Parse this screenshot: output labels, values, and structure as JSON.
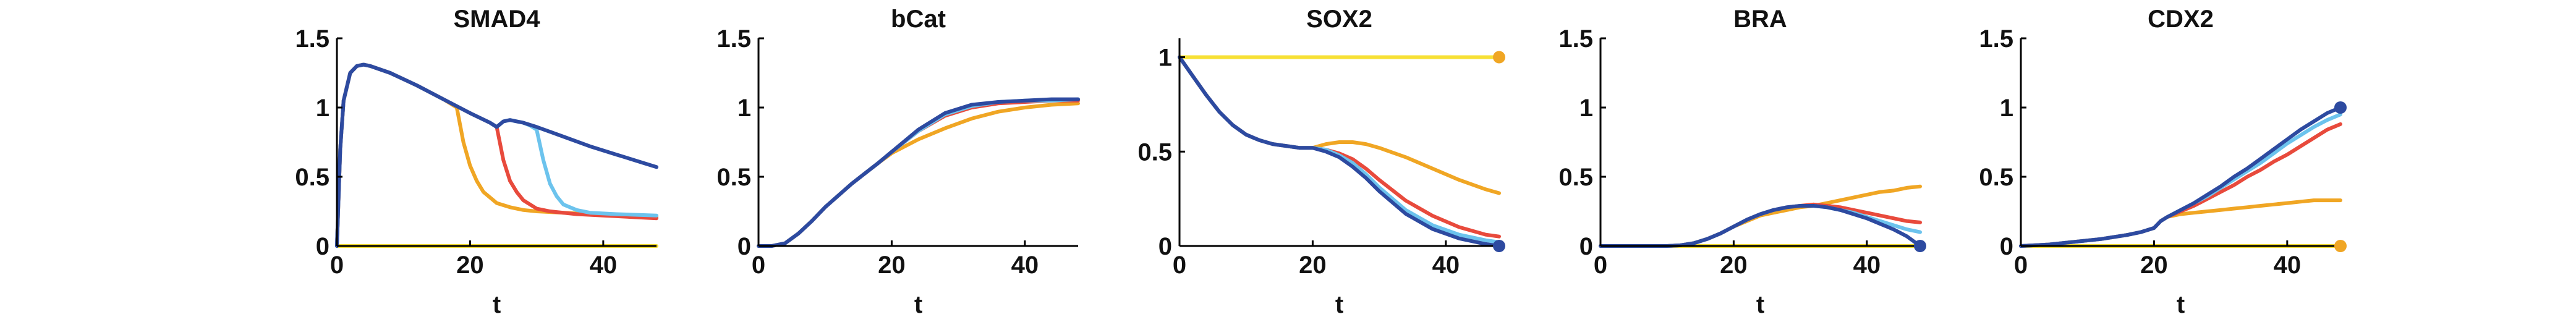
{
  "chart_data": [
    {
      "type": "line",
      "title": "SMAD4",
      "xlabel": "t",
      "ylabel": "",
      "xlim": [
        0,
        48
      ],
      "ylim": [
        0,
        1.5
      ],
      "xticks": [
        0,
        20,
        40
      ],
      "yticks": [
        0,
        0.5,
        1,
        1.5
      ],
      "xtick_labels": [
        "0",
        "20",
        "40"
      ],
      "ytick_labels": [
        "0",
        "0.5",
        "1",
        "1.5"
      ],
      "series": [
        {
          "color": "#f7e034",
          "x": [
            0,
            48
          ],
          "y": [
            0,
            0
          ]
        },
        {
          "color": "#f0a624",
          "x": [
            0,
            0.5,
            1,
            2,
            3,
            4,
            5,
            8,
            12,
            16,
            18,
            19,
            20,
            21,
            22,
            24,
            26,
            28,
            30,
            34,
            38,
            42,
            48
          ],
          "y": [
            0,
            0.7,
            1.05,
            1.25,
            1.3,
            1.31,
            1.3,
            1.25,
            1.16,
            1.06,
            1.0,
            0.75,
            0.58,
            0.47,
            0.39,
            0.31,
            0.28,
            0.26,
            0.25,
            0.24,
            0.23,
            0.22,
            0.21
          ]
        },
        {
          "color": "#e84a3c",
          "x": [
            0,
            0.5,
            1,
            2,
            3,
            4,
            5,
            8,
            12,
            16,
            20,
            23,
            24,
            25,
            26,
            27,
            28,
            30,
            32,
            36,
            40,
            44,
            48
          ],
          "y": [
            0,
            0.7,
            1.05,
            1.25,
            1.3,
            1.31,
            1.3,
            1.25,
            1.16,
            1.06,
            0.96,
            0.89,
            0.86,
            0.62,
            0.47,
            0.39,
            0.33,
            0.27,
            0.25,
            0.23,
            0.22,
            0.21,
            0.2
          ]
        },
        {
          "color": "#6cc3ed",
          "x": [
            0,
            0.5,
            1,
            2,
            3,
            4,
            5,
            8,
            12,
            16,
            20,
            23,
            24,
            25,
            26,
            27,
            28,
            29,
            30,
            31,
            32,
            33,
            34,
            36,
            38,
            42,
            48
          ],
          "y": [
            0,
            0.7,
            1.05,
            1.25,
            1.3,
            1.31,
            1.3,
            1.25,
            1.16,
            1.06,
            0.96,
            0.89,
            0.86,
            0.9,
            0.91,
            0.9,
            0.89,
            0.87,
            0.84,
            0.62,
            0.45,
            0.36,
            0.3,
            0.26,
            0.24,
            0.23,
            0.22
          ]
        },
        {
          "color": "#2d4aa0",
          "x": [
            0,
            0.5,
            1,
            2,
            3,
            4,
            5,
            8,
            12,
            16,
            20,
            23,
            24,
            25,
            26,
            27,
            28,
            30,
            34,
            38,
            42,
            46,
            48
          ],
          "y": [
            0,
            0.7,
            1.05,
            1.25,
            1.3,
            1.31,
            1.3,
            1.25,
            1.16,
            1.06,
            0.96,
            0.89,
            0.86,
            0.9,
            0.91,
            0.9,
            0.89,
            0.86,
            0.79,
            0.72,
            0.66,
            0.6,
            0.57
          ]
        }
      ],
      "end_marker": null
    },
    {
      "type": "line",
      "title": "bCat",
      "xlabel": "t",
      "ylabel": "",
      "xlim": [
        0,
        48
      ],
      "ylim": [
        0,
        1.5
      ],
      "xticks": [
        0,
        20,
        40
      ],
      "yticks": [
        0,
        0.5,
        1,
        1.5
      ],
      "xtick_labels": [
        "0",
        "20",
        "40"
      ],
      "ytick_labels": [
        "0",
        "0.5",
        "1",
        "1.5"
      ],
      "series": [
        {
          "color": "#f0a624",
          "x": [
            0,
            2,
            4,
            6,
            8,
            10,
            14,
            18,
            20,
            24,
            28,
            32,
            36,
            40,
            44,
            48
          ],
          "y": [
            0,
            0,
            0.02,
            0.09,
            0.18,
            0.28,
            0.45,
            0.6,
            0.67,
            0.77,
            0.85,
            0.92,
            0.97,
            1.0,
            1.02,
            1.03
          ]
        },
        {
          "color": "#e84a3c",
          "x": [
            0,
            2,
            4,
            6,
            8,
            10,
            14,
            18,
            20,
            24,
            28,
            32,
            36,
            40,
            44,
            48
          ],
          "y": [
            0,
            0,
            0.02,
            0.09,
            0.18,
            0.28,
            0.45,
            0.6,
            0.68,
            0.83,
            0.94,
            1.0,
            1.03,
            1.04,
            1.05,
            1.05
          ]
        },
        {
          "color": "#6cc3ed",
          "x": [
            0,
            2,
            4,
            6,
            8,
            10,
            14,
            18,
            20,
            24,
            28,
            32,
            36,
            40,
            44,
            48
          ],
          "y": [
            0,
            0,
            0.02,
            0.09,
            0.18,
            0.28,
            0.45,
            0.6,
            0.68,
            0.83,
            0.95,
            1.01,
            1.04,
            1.05,
            1.05,
            1.06
          ]
        },
        {
          "color": "#2d4aa0",
          "x": [
            0,
            2,
            4,
            6,
            8,
            10,
            14,
            18,
            20,
            24,
            28,
            32,
            36,
            40,
            44,
            48
          ],
          "y": [
            0,
            0,
            0.02,
            0.09,
            0.18,
            0.28,
            0.45,
            0.6,
            0.68,
            0.84,
            0.96,
            1.02,
            1.04,
            1.05,
            1.06,
            1.06
          ]
        }
      ],
      "end_marker": null
    },
    {
      "type": "line",
      "title": "SOX2",
      "xlabel": "t",
      "ylabel": "",
      "xlim": [
        0,
        48
      ],
      "ylim": [
        0,
        1.1
      ],
      "xticks": [
        0,
        20,
        40
      ],
      "yticks": [
        0,
        0.5,
        1
      ],
      "xtick_labels": [
        "0",
        "20",
        "40"
      ],
      "ytick_labels": [
        "0",
        "0.5",
        "1"
      ],
      "series": [
        {
          "color": "#f7e034",
          "x": [
            0,
            48
          ],
          "y": [
            1.0,
            1.0
          ]
        },
        {
          "color": "#f0a624",
          "x": [
            0,
            2,
            4,
            6,
            8,
            10,
            12,
            14,
            16,
            18,
            20,
            22,
            24,
            26,
            28,
            30,
            34,
            38,
            42,
            46,
            48
          ],
          "y": [
            1.0,
            0.9,
            0.8,
            0.71,
            0.64,
            0.59,
            0.56,
            0.54,
            0.53,
            0.52,
            0.52,
            0.54,
            0.55,
            0.55,
            0.54,
            0.52,
            0.47,
            0.41,
            0.35,
            0.3,
            0.28
          ]
        },
        {
          "color": "#e84a3c",
          "x": [
            0,
            2,
            4,
            6,
            8,
            10,
            12,
            14,
            16,
            18,
            20,
            22,
            24,
            26,
            28,
            30,
            34,
            38,
            42,
            46,
            48
          ],
          "y": [
            1.0,
            0.9,
            0.8,
            0.71,
            0.64,
            0.59,
            0.56,
            0.54,
            0.53,
            0.52,
            0.52,
            0.51,
            0.49,
            0.46,
            0.41,
            0.35,
            0.24,
            0.16,
            0.1,
            0.06,
            0.05
          ]
        },
        {
          "color": "#6cc3ed",
          "x": [
            0,
            2,
            4,
            6,
            8,
            10,
            12,
            14,
            16,
            18,
            20,
            22,
            24,
            26,
            28,
            30,
            34,
            38,
            42,
            46,
            48
          ],
          "y": [
            1.0,
            0.9,
            0.8,
            0.71,
            0.64,
            0.59,
            0.56,
            0.54,
            0.53,
            0.52,
            0.52,
            0.51,
            0.48,
            0.44,
            0.38,
            0.31,
            0.19,
            0.11,
            0.06,
            0.03,
            0.02
          ]
        },
        {
          "color": "#2d4aa0",
          "x": [
            0,
            2,
            4,
            6,
            8,
            10,
            12,
            14,
            16,
            18,
            20,
            22,
            24,
            26,
            28,
            30,
            34,
            38,
            42,
            46,
            48
          ],
          "y": [
            1.0,
            0.9,
            0.8,
            0.71,
            0.64,
            0.59,
            0.56,
            0.54,
            0.53,
            0.52,
            0.52,
            0.5,
            0.47,
            0.42,
            0.36,
            0.29,
            0.17,
            0.09,
            0.04,
            0.01,
            0.0
          ]
        }
      ],
      "end_marker": {
        "y": 1.0,
        "color": "#f0a624",
        "y2": 0.0,
        "color2": "#2d4aa0"
      }
    },
    {
      "type": "line",
      "title": "BRA",
      "xlabel": "t",
      "ylabel": "",
      "xlim": [
        0,
        48
      ],
      "ylim": [
        0,
        1.5
      ],
      "xticks": [
        0,
        20,
        40
      ],
      "yticks": [
        0,
        0.5,
        1,
        1.5
      ],
      "xtick_labels": [
        "0",
        "20",
        "40"
      ],
      "ytick_labels": [
        "0",
        "0.5",
        "1",
        "1.5"
      ],
      "series": [
        {
          "color": "#f7e034",
          "x": [
            0,
            48
          ],
          "y": [
            0,
            0
          ]
        },
        {
          "color": "#f0a624",
          "x": [
            0,
            10,
            12,
            14,
            16,
            18,
            20,
            22,
            24,
            26,
            28,
            30,
            32,
            34,
            36,
            38,
            40,
            42,
            44,
            46,
            48
          ],
          "y": [
            0,
            0,
            0.005,
            0.02,
            0.05,
            0.09,
            0.14,
            0.18,
            0.22,
            0.24,
            0.26,
            0.28,
            0.29,
            0.31,
            0.33,
            0.35,
            0.37,
            0.39,
            0.4,
            0.42,
            0.43
          ]
        },
        {
          "color": "#e84a3c",
          "x": [
            0,
            10,
            12,
            14,
            16,
            18,
            20,
            22,
            24,
            26,
            28,
            30,
            32,
            34,
            36,
            38,
            40,
            42,
            44,
            46,
            48
          ],
          "y": [
            0,
            0,
            0.005,
            0.02,
            0.05,
            0.09,
            0.14,
            0.19,
            0.23,
            0.26,
            0.28,
            0.29,
            0.3,
            0.29,
            0.28,
            0.26,
            0.24,
            0.22,
            0.2,
            0.18,
            0.17
          ]
        },
        {
          "color": "#6cc3ed",
          "x": [
            0,
            10,
            12,
            14,
            16,
            18,
            20,
            22,
            24,
            26,
            28,
            30,
            32,
            34,
            36,
            38,
            40,
            42,
            44,
            46,
            48
          ],
          "y": [
            0,
            0,
            0.005,
            0.02,
            0.05,
            0.09,
            0.14,
            0.19,
            0.23,
            0.26,
            0.28,
            0.29,
            0.29,
            0.28,
            0.26,
            0.24,
            0.21,
            0.18,
            0.15,
            0.12,
            0.1
          ]
        },
        {
          "color": "#2d4aa0",
          "x": [
            0,
            10,
            12,
            14,
            16,
            18,
            20,
            22,
            24,
            26,
            28,
            30,
            32,
            34,
            36,
            38,
            40,
            42,
            44,
            46,
            48
          ],
          "y": [
            0,
            0,
            0.005,
            0.02,
            0.05,
            0.09,
            0.14,
            0.19,
            0.23,
            0.26,
            0.28,
            0.29,
            0.29,
            0.28,
            0.26,
            0.23,
            0.2,
            0.16,
            0.12,
            0.07,
            0.0
          ]
        }
      ],
      "end_marker": {
        "y": 0.0,
        "color": "#2d4aa0"
      }
    },
    {
      "type": "line",
      "title": "CDX2",
      "xlabel": "t",
      "ylabel": "",
      "xlim": [
        0,
        48
      ],
      "ylim": [
        0,
        1.5
      ],
      "xticks": [
        0,
        20,
        40
      ],
      "yticks": [
        0,
        0.5,
        1,
        1.5
      ],
      "xtick_labels": [
        "0",
        "20",
        "40"
      ],
      "ytick_labels": [
        "0",
        "0.5",
        "1",
        "1.5"
      ],
      "series": [
        {
          "color": "#f7e034",
          "x": [
            0,
            48
          ],
          "y": [
            0,
            0
          ]
        },
        {
          "color": "#f0a624",
          "x": [
            0,
            4,
            8,
            12,
            16,
            18,
            20,
            21,
            22,
            24,
            26,
            28,
            30,
            32,
            34,
            36,
            38,
            40,
            42,
            44,
            46,
            48
          ],
          "y": [
            0,
            0.01,
            0.03,
            0.05,
            0.08,
            0.1,
            0.13,
            0.18,
            0.21,
            0.23,
            0.24,
            0.25,
            0.26,
            0.27,
            0.28,
            0.29,
            0.3,
            0.31,
            0.32,
            0.33,
            0.33,
            0.33
          ]
        },
        {
          "color": "#e84a3c",
          "x": [
            0,
            4,
            8,
            12,
            16,
            18,
            20,
            21,
            22,
            24,
            26,
            28,
            30,
            32,
            34,
            36,
            38,
            40,
            42,
            44,
            46,
            48
          ],
          "y": [
            0,
            0.01,
            0.03,
            0.05,
            0.08,
            0.1,
            0.13,
            0.18,
            0.21,
            0.25,
            0.29,
            0.34,
            0.39,
            0.44,
            0.5,
            0.55,
            0.61,
            0.66,
            0.72,
            0.78,
            0.84,
            0.88
          ]
        },
        {
          "color": "#6cc3ed",
          "x": [
            0,
            4,
            8,
            12,
            16,
            18,
            20,
            21,
            22,
            24,
            26,
            28,
            30,
            32,
            34,
            36,
            38,
            40,
            42,
            44,
            46,
            48
          ],
          "y": [
            0,
            0.01,
            0.03,
            0.05,
            0.08,
            0.1,
            0.13,
            0.18,
            0.21,
            0.26,
            0.31,
            0.36,
            0.42,
            0.48,
            0.54,
            0.6,
            0.67,
            0.74,
            0.8,
            0.86,
            0.91,
            0.95
          ]
        },
        {
          "color": "#2d4aa0",
          "x": [
            0,
            4,
            8,
            12,
            16,
            18,
            20,
            21,
            22,
            24,
            26,
            28,
            30,
            32,
            34,
            36,
            38,
            40,
            42,
            44,
            46,
            48
          ],
          "y": [
            0,
            0.01,
            0.03,
            0.05,
            0.08,
            0.1,
            0.13,
            0.18,
            0.21,
            0.26,
            0.31,
            0.37,
            0.43,
            0.5,
            0.56,
            0.63,
            0.7,
            0.77,
            0.84,
            0.9,
            0.96,
            1.0
          ]
        }
      ],
      "end_marker": {
        "y": 1.0,
        "color": "#2d4aa0",
        "y2": 0.0,
        "color2": "#f0a624"
      }
    }
  ]
}
